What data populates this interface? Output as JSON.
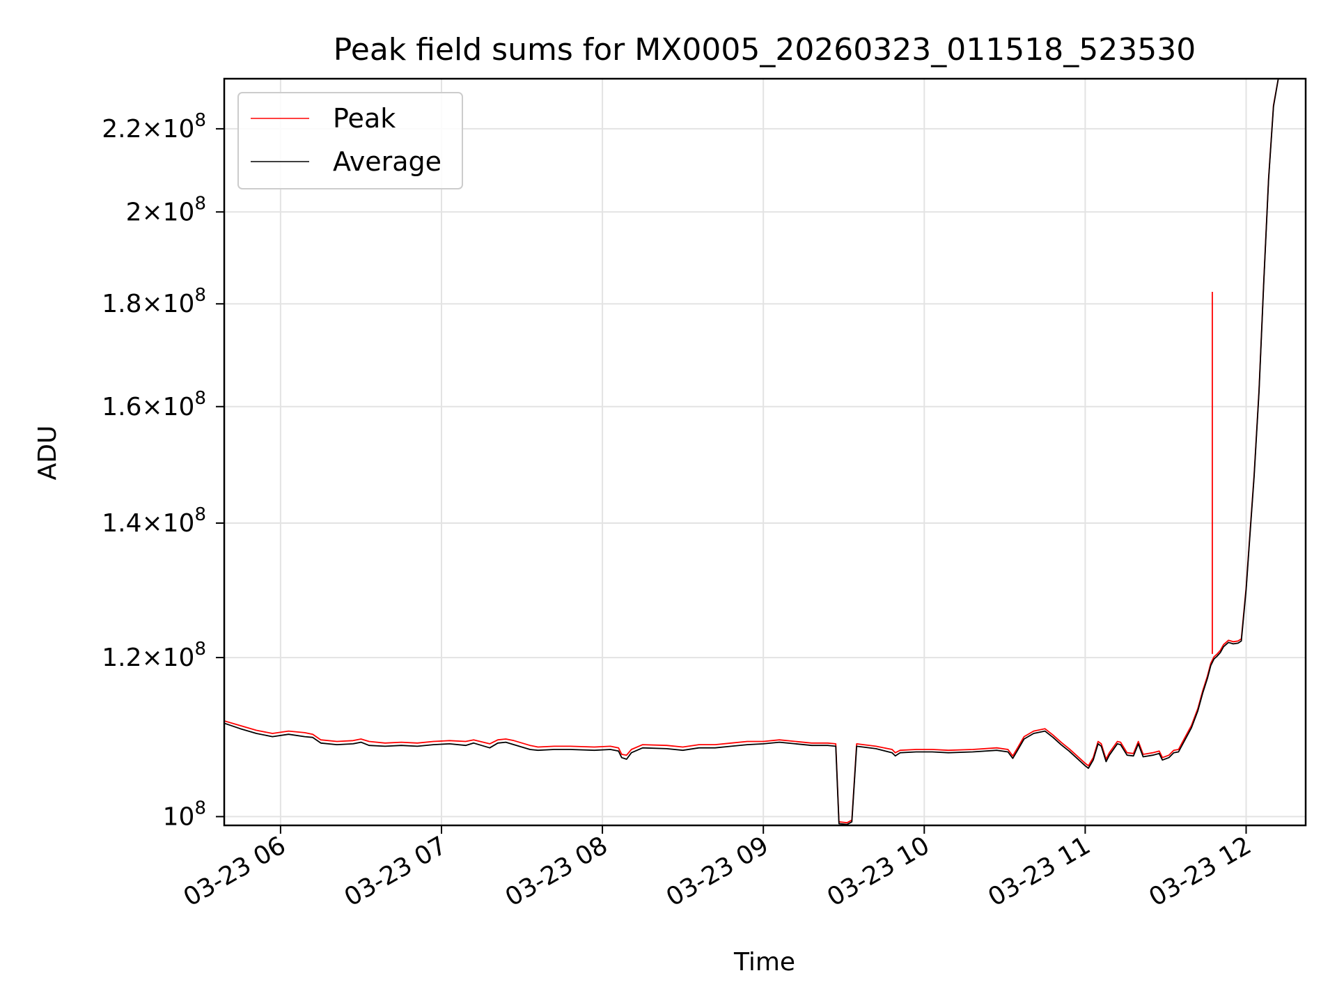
{
  "chart_data": {
    "type": "line",
    "title": "Peak field sums for MX0005_20260323_011518_523530",
    "xlabel": "Time",
    "ylabel": "ADU",
    "y_scale": "log",
    "xlim": [
      5.65,
      12.37
    ],
    "ylim": [
      99000000,
      233000000
    ],
    "grid": true,
    "legend_position": "top-left",
    "x_ticks": [
      {
        "value": 6,
        "label": "03-23 06"
      },
      {
        "value": 7,
        "label": "03-23 07"
      },
      {
        "value": 8,
        "label": "03-23 08"
      },
      {
        "value": 9,
        "label": "03-23 09"
      },
      {
        "value": 10,
        "label": "03-23 10"
      },
      {
        "value": 11,
        "label": "03-23 11"
      },
      {
        "value": 12,
        "label": "03-23 12"
      }
    ],
    "y_ticks": [
      {
        "value": 100000000,
        "mantissa": "",
        "exponent": "8",
        "label": "10^8"
      },
      {
        "value": 120000000,
        "mantissa": "1.2",
        "exponent": "8",
        "label": "1.2×10^8"
      },
      {
        "value": 140000000,
        "mantissa": "1.4",
        "exponent": "8",
        "label": "1.4×10^8"
      },
      {
        "value": 160000000,
        "mantissa": "1.6",
        "exponent": "8",
        "label": "1.6×10^8"
      },
      {
        "value": 180000000,
        "mantissa": "1.8",
        "exponent": "8",
        "label": "1.8×10^8"
      },
      {
        "value": 200000000,
        "mantissa": "2",
        "exponent": "8",
        "label": "2×10^8"
      },
      {
        "value": 220000000,
        "mantissa": "2.2",
        "exponent": "8",
        "label": "2.2×10^8"
      }
    ],
    "series": [
      {
        "name": "Peak",
        "color": "#ff0000",
        "points": [
          [
            5.65,
            111.6
          ],
          [
            5.75,
            111.0
          ],
          [
            5.85,
            110.4
          ],
          [
            5.95,
            110.0
          ],
          [
            6.05,
            110.3
          ],
          [
            6.15,
            110.1
          ],
          [
            6.2,
            109.9
          ],
          [
            6.25,
            109.2
          ],
          [
            6.35,
            109.0
          ],
          [
            6.45,
            109.1
          ],
          [
            6.5,
            109.3
          ],
          [
            6.55,
            109.0
          ],
          [
            6.65,
            108.8
          ],
          [
            6.75,
            108.9
          ],
          [
            6.85,
            108.8
          ],
          [
            6.95,
            109.0
          ],
          [
            7.05,
            109.1
          ],
          [
            7.15,
            109.0
          ],
          [
            7.2,
            109.2
          ],
          [
            7.3,
            108.7
          ],
          [
            7.35,
            109.2
          ],
          [
            7.4,
            109.3
          ],
          [
            7.45,
            109.1
          ],
          [
            7.55,
            108.5
          ],
          [
            7.6,
            108.3
          ],
          [
            7.7,
            108.4
          ],
          [
            7.8,
            108.4
          ],
          [
            7.95,
            108.3
          ],
          [
            8.05,
            108.4
          ],
          [
            8.1,
            108.2
          ],
          [
            8.12,
            107.4
          ],
          [
            8.15,
            107.3
          ],
          [
            8.18,
            108.0
          ],
          [
            8.25,
            108.6
          ],
          [
            8.4,
            108.5
          ],
          [
            8.5,
            108.3
          ],
          [
            8.6,
            108.6
          ],
          [
            8.7,
            108.6
          ],
          [
            8.8,
            108.8
          ],
          [
            8.9,
            109.0
          ],
          [
            9.0,
            109.0
          ],
          [
            9.1,
            109.2
          ],
          [
            9.2,
            109.0
          ],
          [
            9.3,
            108.8
          ],
          [
            9.4,
            108.8
          ],
          [
            9.45,
            108.7
          ],
          [
            9.47,
            99.4
          ],
          [
            9.52,
            99.3
          ],
          [
            9.55,
            99.6
          ],
          [
            9.58,
            108.7
          ],
          [
            9.7,
            108.4
          ],
          [
            9.8,
            108.0
          ],
          [
            9.82,
            107.6
          ],
          [
            9.85,
            107.9
          ],
          [
            9.95,
            108.0
          ],
          [
            10.05,
            108.0
          ],
          [
            10.15,
            107.9
          ],
          [
            10.3,
            108.0
          ],
          [
            10.45,
            108.2
          ],
          [
            10.52,
            108.0
          ],
          [
            10.55,
            107.2
          ],
          [
            10.58,
            108.2
          ],
          [
            10.62,
            109.6
          ],
          [
            10.68,
            110.3
          ],
          [
            10.75,
            110.6
          ],
          [
            10.8,
            109.8
          ],
          [
            10.85,
            108.9
          ],
          [
            10.9,
            108.1
          ],
          [
            10.95,
            107.2
          ],
          [
            11.0,
            106.3
          ],
          [
            11.02,
            106.0
          ],
          [
            11.05,
            107.0
          ],
          [
            11.08,
            109.0
          ],
          [
            11.1,
            108.7
          ],
          [
            11.13,
            106.8
          ],
          [
            11.15,
            107.6
          ],
          [
            11.2,
            109.0
          ],
          [
            11.22,
            108.9
          ],
          [
            11.26,
            107.6
          ],
          [
            11.3,
            107.5
          ],
          [
            11.33,
            109.0
          ],
          [
            11.36,
            107.4
          ],
          [
            11.42,
            107.6
          ],
          [
            11.46,
            107.8
          ],
          [
            11.48,
            107.0
          ],
          [
            11.52,
            107.3
          ],
          [
            11.55,
            107.9
          ],
          [
            11.58,
            108.0
          ],
          [
            11.62,
            109.5
          ],
          [
            11.66,
            111.0
          ],
          [
            11.7,
            113.2
          ],
          [
            11.73,
            115.5
          ],
          [
            11.76,
            117.5
          ],
          [
            11.78,
            119.2
          ],
          [
            11.8,
            120.1
          ],
          [
            11.82,
            120.5
          ],
          [
            11.84,
            121.0
          ],
          [
            11.86,
            121.8
          ],
          [
            11.89,
            122.4
          ],
          [
            11.92,
            122.2
          ],
          [
            11.95,
            122.3
          ],
          [
            11.97,
            122.6
          ],
          [
            12.0,
            130.0
          ],
          [
            12.02,
            137.0
          ],
          [
            12.05,
            148.0
          ],
          [
            12.08,
            163.0
          ],
          [
            12.11,
            185.0
          ],
          [
            12.14,
            208.0
          ],
          [
            12.17,
            226.0
          ],
          [
            12.2,
            233.0
          ]
        ],
        "spikes": [
          {
            "x": 11.79,
            "y_from": 120.5,
            "y_to": 182.5
          }
        ]
      },
      {
        "name": "Average",
        "color": "#000000",
        "points": [
          [
            5.65,
            111.3
          ],
          [
            5.75,
            110.6
          ],
          [
            5.85,
            110.0
          ],
          [
            5.95,
            109.6
          ],
          [
            6.05,
            109.9
          ],
          [
            6.15,
            109.6
          ],
          [
            6.2,
            109.5
          ],
          [
            6.25,
            108.8
          ],
          [
            6.35,
            108.6
          ],
          [
            6.45,
            108.7
          ],
          [
            6.5,
            108.9
          ],
          [
            6.55,
            108.5
          ],
          [
            6.65,
            108.4
          ],
          [
            6.75,
            108.5
          ],
          [
            6.85,
            108.4
          ],
          [
            6.95,
            108.6
          ],
          [
            7.05,
            108.7
          ],
          [
            7.15,
            108.5
          ],
          [
            7.2,
            108.8
          ],
          [
            7.3,
            108.2
          ],
          [
            7.35,
            108.8
          ],
          [
            7.4,
            108.9
          ],
          [
            7.45,
            108.6
          ],
          [
            7.55,
            108.0
          ],
          [
            7.6,
            107.9
          ],
          [
            7.7,
            108.0
          ],
          [
            7.8,
            108.0
          ],
          [
            7.95,
            107.9
          ],
          [
            8.05,
            108.0
          ],
          [
            8.1,
            107.8
          ],
          [
            8.12,
            107.0
          ],
          [
            8.15,
            106.8
          ],
          [
            8.18,
            107.6
          ],
          [
            8.25,
            108.2
          ],
          [
            8.4,
            108.1
          ],
          [
            8.5,
            107.9
          ],
          [
            8.6,
            108.2
          ],
          [
            8.7,
            108.2
          ],
          [
            8.8,
            108.4
          ],
          [
            8.9,
            108.6
          ],
          [
            9.0,
            108.7
          ],
          [
            9.1,
            108.9
          ],
          [
            9.2,
            108.7
          ],
          [
            9.3,
            108.5
          ],
          [
            9.4,
            108.5
          ],
          [
            9.45,
            108.4
          ],
          [
            9.47,
            99.2
          ],
          [
            9.52,
            99.1
          ],
          [
            9.55,
            99.4
          ],
          [
            9.58,
            108.4
          ],
          [
            9.7,
            108.1
          ],
          [
            9.8,
            107.6
          ],
          [
            9.82,
            107.2
          ],
          [
            9.85,
            107.6
          ],
          [
            9.95,
            107.7
          ],
          [
            10.05,
            107.7
          ],
          [
            10.15,
            107.6
          ],
          [
            10.3,
            107.7
          ],
          [
            10.45,
            107.9
          ],
          [
            10.52,
            107.7
          ],
          [
            10.55,
            106.9
          ],
          [
            10.58,
            107.9
          ],
          [
            10.62,
            109.3
          ],
          [
            10.68,
            110.0
          ],
          [
            10.75,
            110.3
          ],
          [
            10.8,
            109.5
          ],
          [
            10.85,
            108.6
          ],
          [
            10.9,
            107.8
          ],
          [
            10.95,
            106.9
          ],
          [
            11.0,
            106.0
          ],
          [
            11.02,
            105.7
          ],
          [
            11.05,
            106.7
          ],
          [
            11.08,
            108.7
          ],
          [
            11.1,
            108.4
          ],
          [
            11.13,
            106.5
          ],
          [
            11.15,
            107.3
          ],
          [
            11.2,
            108.7
          ],
          [
            11.22,
            108.6
          ],
          [
            11.26,
            107.3
          ],
          [
            11.3,
            107.2
          ],
          [
            11.33,
            108.7
          ],
          [
            11.36,
            107.1
          ],
          [
            11.42,
            107.3
          ],
          [
            11.46,
            107.5
          ],
          [
            11.48,
            106.7
          ],
          [
            11.52,
            107.0
          ],
          [
            11.55,
            107.6
          ],
          [
            11.58,
            107.7
          ],
          [
            11.62,
            109.2
          ],
          [
            11.66,
            110.7
          ],
          [
            11.7,
            112.9
          ],
          [
            11.73,
            115.2
          ],
          [
            11.76,
            117.2
          ],
          [
            11.78,
            118.9
          ],
          [
            11.8,
            119.8
          ],
          [
            11.82,
            120.2
          ],
          [
            11.84,
            120.7
          ],
          [
            11.86,
            121.5
          ],
          [
            11.89,
            122.1
          ],
          [
            11.92,
            121.9
          ],
          [
            11.95,
            122.0
          ],
          [
            11.97,
            122.3
          ],
          [
            12.0,
            129.7
          ],
          [
            12.02,
            136.7
          ],
          [
            12.05,
            147.7
          ],
          [
            12.08,
            162.7
          ],
          [
            12.11,
            184.7
          ],
          [
            12.14,
            207.7
          ],
          [
            12.17,
            225.7
          ],
          [
            12.2,
            233.0
          ]
        ],
        "spikes": []
      }
    ]
  }
}
